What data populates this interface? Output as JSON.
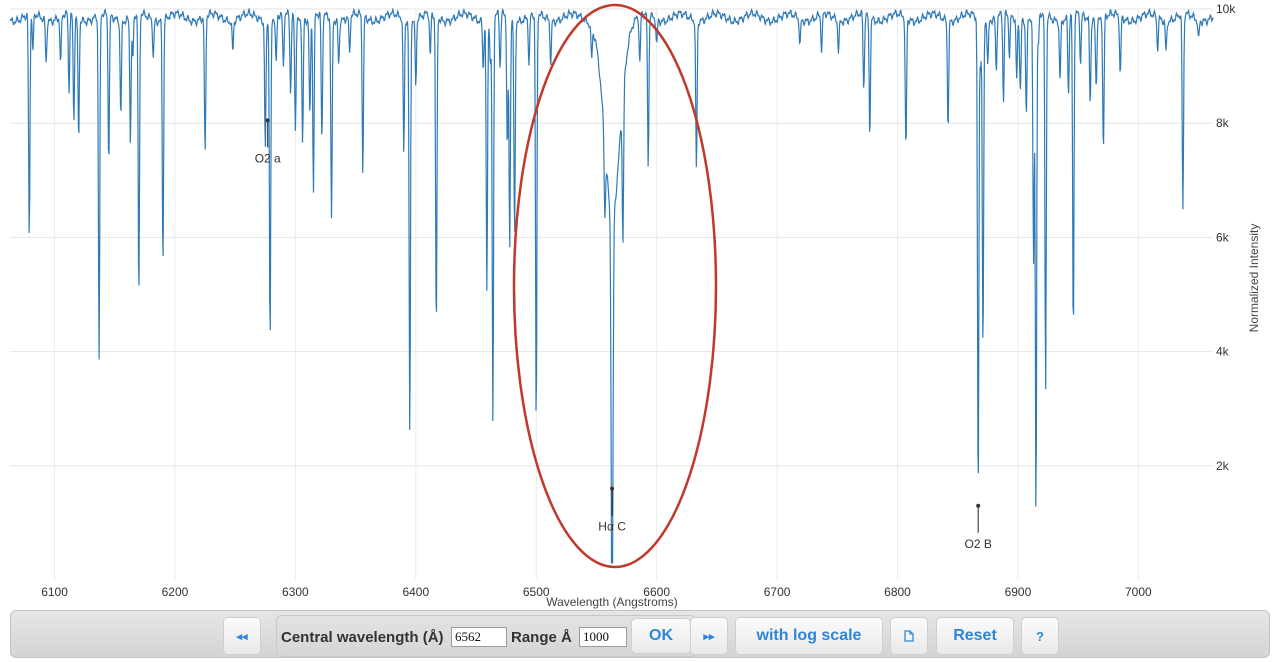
{
  "chart_data": {
    "type": "line",
    "xlabel": "Wavelength (Angstroms)",
    "ylabel": "Normalized Intensity",
    "xlim": [
      6063,
      7062
    ],
    "ylim": [
      0,
      10000
    ],
    "x_ticks": [
      6100,
      6200,
      6300,
      6400,
      6500,
      6600,
      6700,
      6800,
      6900,
      7000
    ],
    "y_ticks": [
      2000,
      4000,
      6000,
      8000,
      10000
    ],
    "y_tick_labels": [
      "2k",
      "4k",
      "6k",
      "8k",
      "10k"
    ],
    "grid": true,
    "series": [
      {
        "color": "#2e7ab8",
        "continuum": 9850,
        "absorption_lines": [
          [
            6079,
            5900
          ],
          [
            6082,
            9200
          ],
          [
            6093,
            9100
          ],
          [
            6105,
            9000
          ],
          [
            6112,
            8500
          ],
          [
            6116,
            8000
          ],
          [
            6120,
            7700
          ],
          [
            6137,
            3800
          ],
          [
            6145,
            7300
          ],
          [
            6155,
            8200
          ],
          [
            6163,
            7700
          ],
          [
            6165,
            9100
          ],
          [
            6170,
            4800
          ],
          [
            6182,
            9200
          ],
          [
            6190,
            5600
          ],
          [
            6225,
            7400
          ],
          [
            6248,
            9300
          ],
          [
            6275,
            7600
          ],
          [
            6279,
            4200
          ],
          [
            6284,
            9000
          ],
          [
            6290,
            8900
          ],
          [
            6296,
            8500
          ],
          [
            6300,
            7900
          ],
          [
            6306,
            7700
          ],
          [
            6312,
            8100
          ],
          [
            6315,
            6800
          ],
          [
            6322,
            7600
          ],
          [
            6330,
            6300
          ],
          [
            6336,
            9100
          ],
          [
            6345,
            9200
          ],
          [
            6356,
            7100
          ],
          [
            6390,
            7500
          ],
          [
            6395,
            2600
          ],
          [
            6400,
            8700
          ],
          [
            6412,
            9100
          ],
          [
            6417,
            4300
          ],
          [
            6456,
            9000
          ],
          [
            6459,
            5100
          ],
          [
            6462,
            9000
          ],
          [
            6464,
            2700
          ],
          [
            6470,
            8900
          ],
          [
            6476,
            7500
          ],
          [
            6478,
            5800
          ],
          [
            6482,
            6000
          ],
          [
            6494,
            9000
          ],
          [
            6500,
            7000
          ],
          [
            6500,
            5400
          ],
          [
            6512,
            9100
          ],
          [
            6546,
            9300
          ],
          [
            6557,
            8600
          ],
          [
            6563,
            1600
          ],
          [
            6572,
            7300
          ],
          [
            6586,
            9000
          ],
          [
            6593,
            7200
          ],
          [
            6600,
            9400
          ],
          [
            6633,
            7200
          ],
          [
            6719,
            9400
          ],
          [
            6737,
            9200
          ],
          [
            6751,
            9300
          ],
          [
            6772,
            8500
          ],
          [
            6777,
            7800
          ],
          [
            6807,
            7500
          ],
          [
            6842,
            8000
          ],
          [
            6867,
            1300
          ],
          [
            6869,
            9000
          ],
          [
            6871,
            4000
          ],
          [
            6875,
            9100
          ],
          [
            6882,
            8900
          ],
          [
            6888,
            8300
          ],
          [
            6893,
            9100
          ],
          [
            6899,
            8800
          ],
          [
            6902,
            8600
          ],
          [
            6907,
            8200
          ],
          [
            6913,
            5500
          ],
          [
            6915,
            1100
          ],
          [
            6917,
            9300
          ],
          [
            6923,
            3300
          ],
          [
            6935,
            8800
          ],
          [
            6942,
            8500
          ],
          [
            6946,
            4200
          ],
          [
            6952,
            9000
          ],
          [
            6960,
            8400
          ],
          [
            6965,
            8700
          ],
          [
            6971,
            7500
          ],
          [
            6985,
            8800
          ],
          [
            7016,
            9300
          ],
          [
            7023,
            9300
          ],
          [
            7037,
            6400
          ],
          [
            7050,
            9500
          ]
        ]
      }
    ],
    "annotations": [
      {
        "text": "O2  a",
        "x": 6277,
        "y": 8050
      },
      {
        "text": "Hα  C",
        "x": 6563,
        "y": 1600
      },
      {
        "text": "O2  B",
        "x": 6867,
        "y": 1300
      }
    ]
  },
  "toolbar": {
    "prev_icon": "◂◂",
    "central_label": "Central wavelength (Å)",
    "central_value": "6562",
    "range_label": "Range Å",
    "range_value": "1000",
    "ok_label": "OK",
    "next_icon": "▸▸",
    "log_scale_label": "with log scale",
    "export_icon": "document-icon",
    "reset_label": "Reset",
    "help_label": "?"
  },
  "highlight": {
    "color": "#c0392b"
  }
}
